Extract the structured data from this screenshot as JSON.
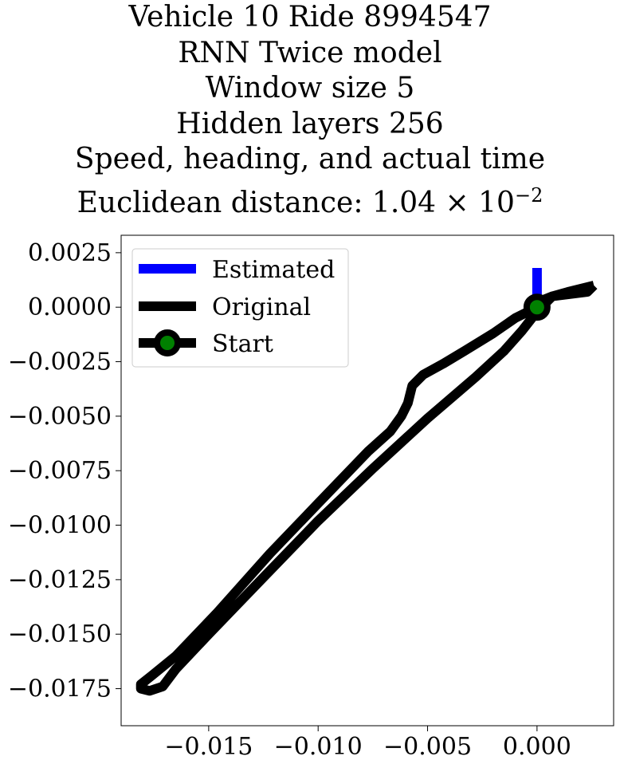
{
  "chart_data": {
    "type": "line",
    "title_lines": [
      "Vehicle 10 Ride 8994547",
      "RNN Twice model",
      "Window size 5",
      "Hidden layers 256",
      "Speed, heading, and actual time"
    ],
    "title_last_line": {
      "prefix": "Euclidean distance: 1.04",
      "times": "×",
      "base": "10",
      "exponent": "−2"
    },
    "xlim": [
      -0.019,
      0.0035
    ],
    "ylim": [
      -0.0192,
      0.0033
    ],
    "x_ticks": [
      {
        "value": -0.015,
        "label": "−0.015"
      },
      {
        "value": -0.01,
        "label": "−0.010"
      },
      {
        "value": -0.005,
        "label": "−0.005"
      },
      {
        "value": 0.0,
        "label": "0.000"
      }
    ],
    "y_ticks": [
      {
        "value": 0.0025,
        "label": "0.0025"
      },
      {
        "value": 0.0,
        "label": "0.0000"
      },
      {
        "value": -0.0025,
        "label": "−0.0025"
      },
      {
        "value": -0.005,
        "label": "−0.0050"
      },
      {
        "value": -0.0075,
        "label": "−0.0075"
      },
      {
        "value": -0.01,
        "label": "−0.0100"
      },
      {
        "value": -0.0125,
        "label": "−0.0125"
      },
      {
        "value": -0.015,
        "label": "−0.0150"
      },
      {
        "value": -0.0175,
        "label": "−0.0175"
      }
    ],
    "grid": false,
    "legend_position": "top-left",
    "series": [
      {
        "name": "Estimated",
        "color": "#0000ff",
        "x": [
          0.0,
          0.0
        ],
        "y": [
          0.0,
          0.0018
        ]
      },
      {
        "name": "Original",
        "color": "#000000",
        "x": [
          0.0026,
          0.0023,
          0.0015,
          0.0007,
          0.0002,
          0.0,
          -0.001,
          -0.002,
          -0.0033,
          -0.0043,
          -0.0052,
          -0.0057,
          -0.0059,
          -0.0062,
          -0.0067,
          -0.0077,
          -0.01,
          -0.0122,
          -0.0146,
          -0.0165,
          -0.0176,
          -0.0181,
          -0.0181,
          -0.0177,
          -0.0171,
          -0.0165,
          -0.015,
          -0.0125,
          -0.01,
          -0.0075,
          -0.005,
          -0.0028,
          -0.0015,
          -0.0007,
          0.0,
          0.0007,
          0.0014,
          0.0026
        ],
        "y": [
          0.001,
          0.0007,
          0.0006,
          0.0005,
          0.0003,
          0.0,
          -0.0005,
          -0.0012,
          -0.002,
          -0.0026,
          -0.0031,
          -0.0036,
          -0.0044,
          -0.005,
          -0.0057,
          -0.0066,
          -0.009,
          -0.0113,
          -0.014,
          -0.016,
          -0.0169,
          -0.0173,
          -0.0175,
          -0.0176,
          -0.0174,
          -0.0166,
          -0.015,
          -0.0124,
          -0.0098,
          -0.0074,
          -0.0051,
          -0.0032,
          -0.002,
          -0.0011,
          -0.0002,
          0.0005,
          0.0007,
          0.001
        ]
      },
      {
        "name": "Start",
        "color": "#000000",
        "marker_color": "#008000",
        "x": [
          0.0
        ],
        "y": [
          0.0
        ]
      }
    ]
  }
}
